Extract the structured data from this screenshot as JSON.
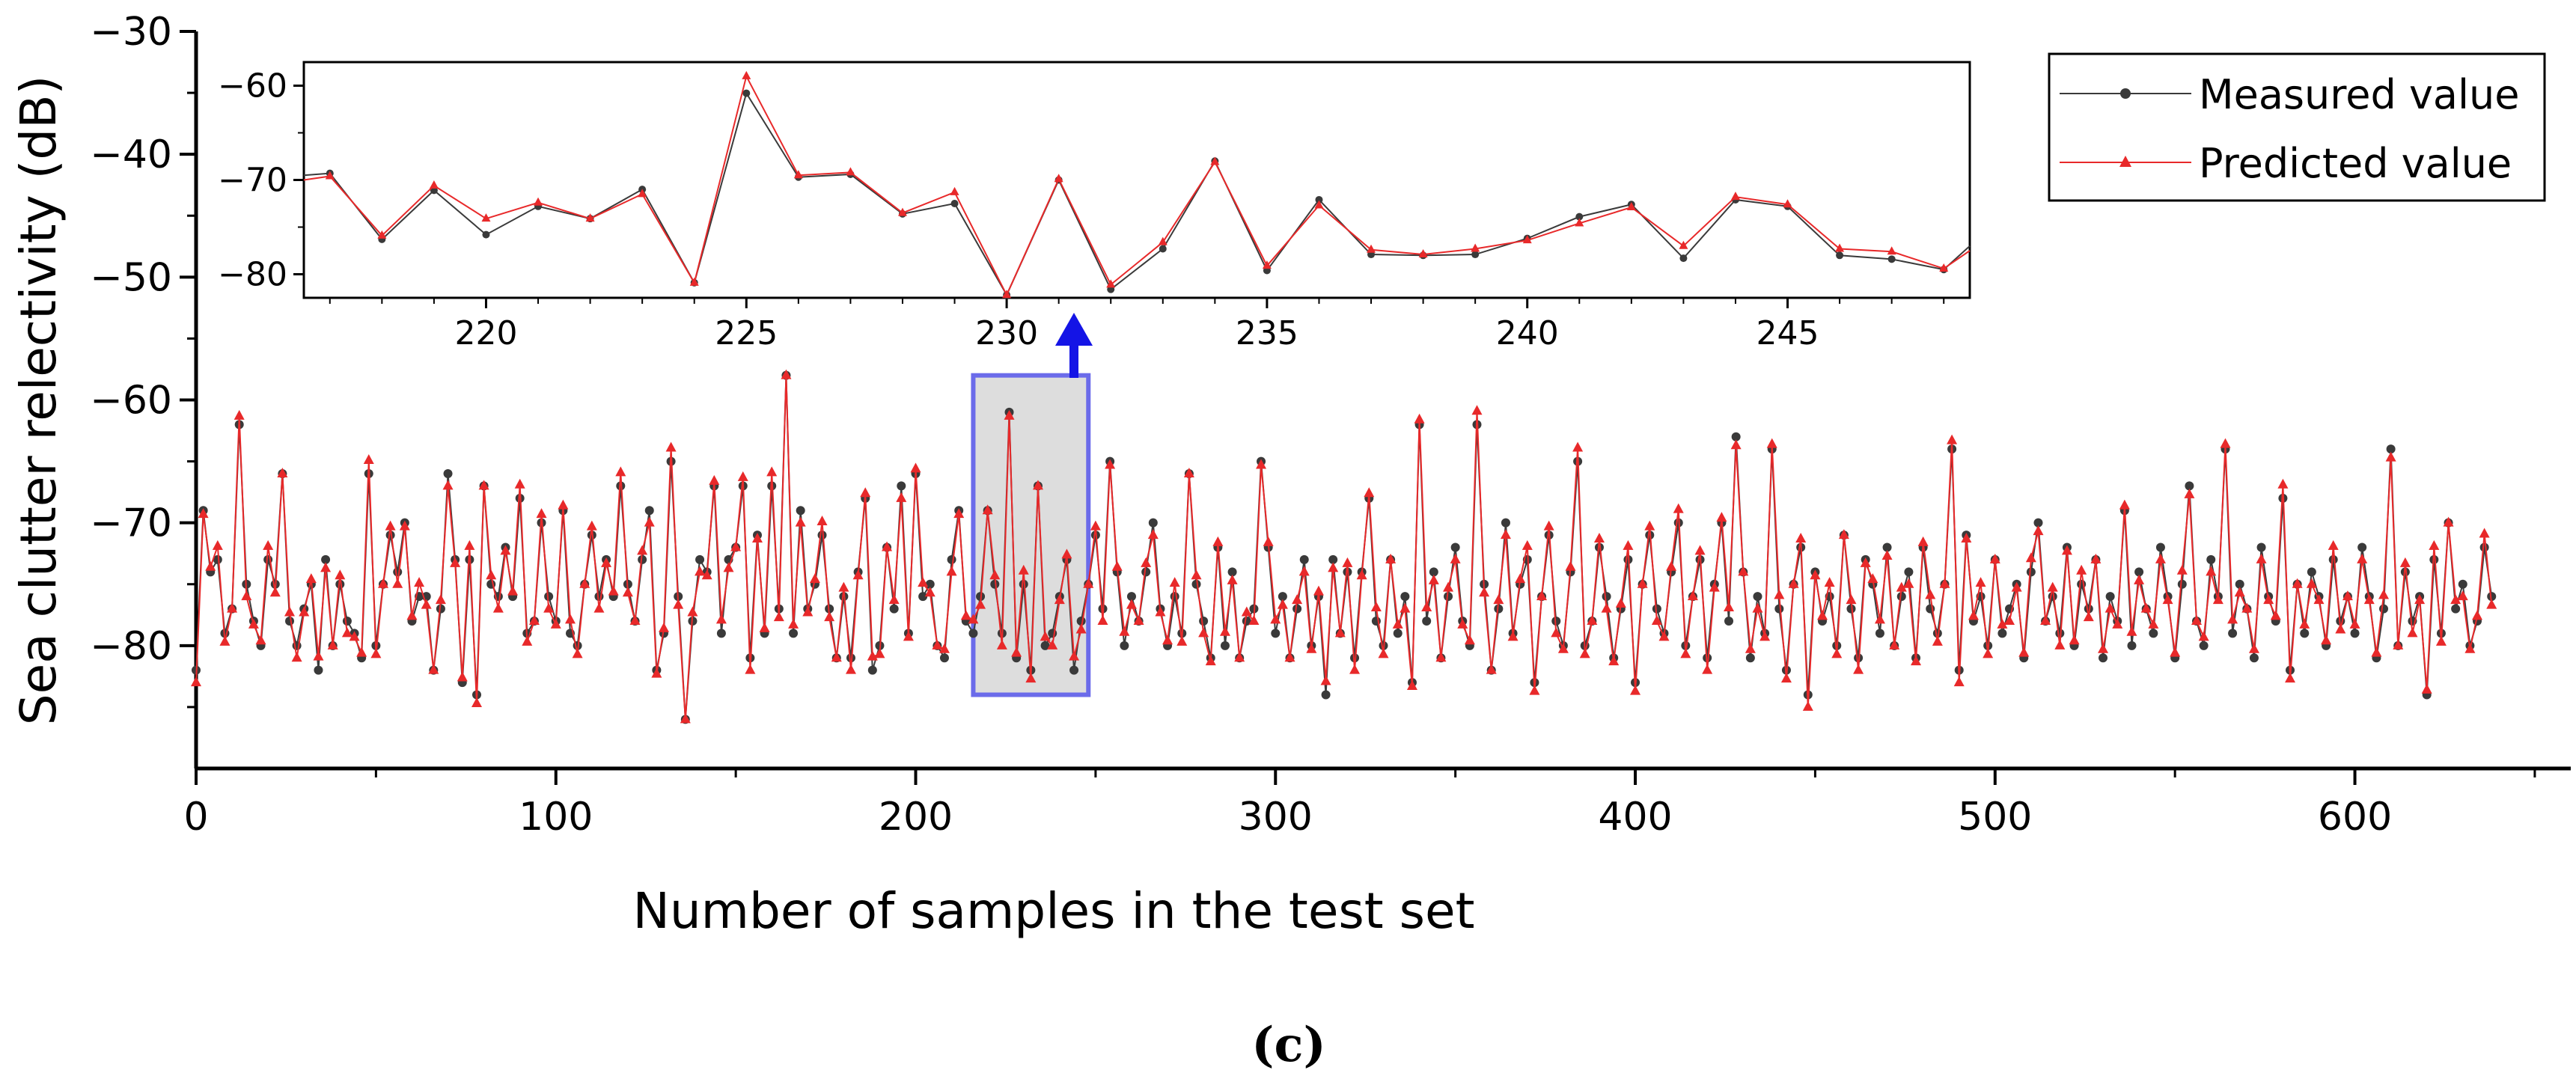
{
  "chart_data": {
    "type": "line",
    "xlabel": "Number of samples in the test set",
    "ylabel": "Sea clutter relectivity (dB)",
    "panel_label": "(c)",
    "xlim": [
      0,
      660
    ],
    "ylim": [
      -90,
      -30
    ],
    "x_ticks": [
      "0",
      "100",
      "200",
      "300",
      "400",
      "500",
      "600"
    ],
    "x_tick_values": [
      0,
      100,
      200,
      300,
      400,
      500,
      600
    ],
    "y_ticks": [
      "−30",
      "−40",
      "−50",
      "−60",
      "−70",
      "−80"
    ],
    "y_tick_values": [
      -30,
      -40,
      -50,
      -60,
      -70,
      -80
    ],
    "legend": [
      {
        "label": "Measured value",
        "color": "#3a3a3a",
        "marker": "circle"
      },
      {
        "label": "Predicted value",
        "color": "#e8292a",
        "marker": "triangle"
      }
    ],
    "highlight": {
      "x_range": [
        216,
        248
      ],
      "y_range": [
        -84,
        -58
      ],
      "fill": "#d9d9d9",
      "edge": "#6b6bea"
    },
    "arrow_color": "#1414e6",
    "main_series_sampling": "estimated envelope of a noisy series of 660 samples, drawn every 2 samples",
    "main_series": {
      "x_step": 2,
      "measured": [
        -82,
        -69,
        -74,
        -73,
        -79,
        -77,
        -62,
        -75,
        -78,
        -80,
        -73,
        -75,
        -66,
        -78,
        -80,
        -77,
        -75,
        -82,
        -73,
        -80,
        -75,
        -78,
        -79,
        -81,
        -66,
        -80,
        -75,
        -71,
        -74,
        -70,
        -78,
        -76,
        -76,
        -82,
        -77,
        -66,
        -73,
        -83,
        -73,
        -84,
        -67,
        -75,
        -76,
        -72,
        -76,
        -68,
        -79,
        -78,
        -70,
        -76,
        -78,
        -69,
        -79,
        -80,
        -75,
        -71,
        -76,
        -73,
        -76,
        -67,
        -75,
        -78,
        -73,
        -69,
        -82,
        -79,
        -65,
        -76,
        -86,
        -78,
        -73,
        -74,
        -67,
        -79,
        -73,
        -72,
        -67,
        -81,
        -71,
        -79,
        -67,
        -77,
        -58,
        -79,
        -69,
        -77,
        -75,
        -71,
        -77,
        -81,
        -76,
        -81,
        -74,
        -68,
        -82,
        -80,
        -72,
        -77,
        -67,
        -79,
        -66,
        -76,
        -75,
        -80,
        -81,
        -73,
        -69,
        -78,
        -79,
        -76,
        -69,
        -75,
        -79,
        -61,
        -81,
        -75,
        -82,
        -67,
        -80,
        -79,
        -76,
        -73,
        -82,
        -78,
        -75,
        -71,
        -77,
        -65,
        -74,
        -80,
        -76,
        -78,
        -74,
        -70,
        -77,
        -80,
        -76,
        -79,
        -66,
        -75,
        -78,
        -81,
        -72,
        -80,
        -74,
        -81,
        -78,
        -77,
        -65,
        -72,
        -79,
        -76,
        -81,
        -77,
        -73,
        -80,
        -76,
        -84,
        -73,
        -79,
        -74,
        -81,
        -74,
        -68,
        -78,
        -80,
        -73,
        -79,
        -76,
        -83,
        -62,
        -78,
        -74,
        -81,
        -76,
        -72,
        -78,
        -80,
        -62,
        -75,
        -82,
        -77,
        -70,
        -79,
        -75,
        -73,
        -83,
        -76,
        -71,
        -78,
        -80,
        -74,
        -65,
        -80,
        -78,
        -72,
        -76,
        -81,
        -77,
        -73,
        -83,
        -75,
        -71,
        -77,
        -79,
        -74,
        -70,
        -80,
        -76,
        -73,
        -81,
        -75,
        -70,
        -78,
        -63,
        -74,
        -81,
        -76,
        -79,
        -64,
        -77,
        -82,
        -75,
        -72,
        -84,
        -74,
        -78,
        -76,
        -80,
        -71,
        -77,
        -81,
        -73,
        -75,
        -79,
        -72,
        -80,
        -76,
        -74,
        -81,
        -72,
        -77,
        -79,
        -75,
        -64,
        -82,
        -71,
        -78,
        -76,
        -80,
        -73,
        -79,
        -77,
        -75,
        -81,
        -74,
        -70,
        -78,
        -76,
        -79,
        -72,
        -80,
        -75,
        -77,
        -73,
        -81,
        -76,
        -78,
        -69,
        -80,
        -74,
        -77,
        -79,
        -72,
        -76,
        -81,
        -75,
        -67,
        -78,
        -80,
        -73,
        -76,
        -64,
        -79,
        -75,
        -77,
        -81,
        -72,
        -76,
        -78,
        -68,
        -82,
        -75,
        -79,
        -74,
        -76,
        -80,
        -73,
        -78,
        -76,
        -79,
        -72,
        -76,
        -81,
        -77,
        -64,
        -80,
        -74,
        -78,
        -76,
        -84,
        -73,
        -79,
        -70,
        -77,
        -75,
        -80,
        -78,
        -72,
        -76
      ]
    },
    "inset": {
      "xlim": [
        216.5,
        248.5
      ],
      "ylim": [
        -82.5,
        -57.5
      ],
      "x_ticks": [
        "220",
        "225",
        "230",
        "235",
        "240",
        "245"
      ],
      "x_tick_values": [
        220,
        225,
        230,
        235,
        240,
        245
      ],
      "y_ticks": [
        "−60",
        "−70",
        "−80"
      ],
      "y_tick_values": [
        -60,
        -70,
        -80
      ],
      "x": [
        216,
        217,
        218,
        219,
        220,
        221,
        222,
        223,
        224,
        225,
        226,
        227,
        228,
        229,
        230,
        231,
        232,
        233,
        234,
        235,
        236,
        237,
        238,
        239,
        240,
        241,
        242,
        243,
        244,
        245,
        246,
        247,
        248,
        249
      ],
      "measured": [
        -69.5,
        -69.3,
        -76.3,
        -71.1,
        -75.8,
        -72.8,
        -74.1,
        -71.0,
        -80.9,
        -60.8,
        -69.7,
        -69.4,
        -73.6,
        -72.5,
        -82.2,
        -70.0,
        -81.6,
        -77.3,
        -68.0,
        -79.6,
        -72.1,
        -77.9,
        -78.0,
        -77.9,
        -76.2,
        -73.9,
        -72.6,
        -78.3,
        -72.1,
        -72.8,
        -78.0,
        -78.4,
        -79.5,
        -77.0
      ],
      "predicted": [
        -70.0,
        -69.6,
        -75.9,
        -70.6,
        -74.1,
        -72.4,
        -74.1,
        -71.5,
        -80.9,
        -59.0,
        -69.5,
        -69.2,
        -73.5,
        -71.3,
        -82.2,
        -69.9,
        -81.1,
        -76.6,
        -68.1,
        -79.1,
        -72.7,
        -77.4,
        -77.9,
        -77.3,
        -76.4,
        -74.6,
        -72.9,
        -77.0,
        -71.8,
        -72.6,
        -77.3,
        -77.6,
        -79.4,
        -77.5
      ]
    }
  }
}
